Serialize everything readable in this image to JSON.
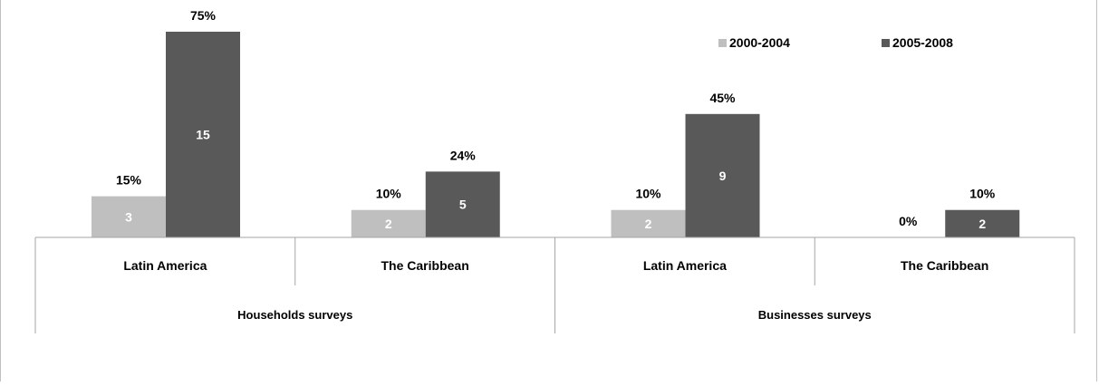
{
  "chart_data": {
    "type": "bar",
    "groups": [
      {
        "label": "Households surveys",
        "categories": [
          "Latin America",
          "The Caribbean"
        ]
      },
      {
        "label": "Businesses surveys",
        "categories": [
          "Latin America",
          "The Caribbean"
        ]
      }
    ],
    "categories": [
      "Latin America",
      "The Caribbean",
      "Latin America",
      "The Caribbean"
    ],
    "series": [
      {
        "name": "2000-2004",
        "color": "#bfbfbf",
        "values": [
          15,
          10,
          10,
          0
        ],
        "labels": [
          "15%",
          "10%",
          "10%",
          "0%"
        ],
        "counts": [
          "3",
          "2",
          "2",
          ""
        ]
      },
      {
        "name": "2005-2008",
        "color": "#595959",
        "values": [
          75,
          24,
          45,
          10
        ],
        "labels": [
          "75%",
          "24%",
          "45%",
          "10%"
        ],
        "counts": [
          "15",
          "5",
          "9",
          "2"
        ]
      }
    ],
    "ylim": [
      0,
      75
    ],
    "legend": "top-right",
    "grid": false
  }
}
